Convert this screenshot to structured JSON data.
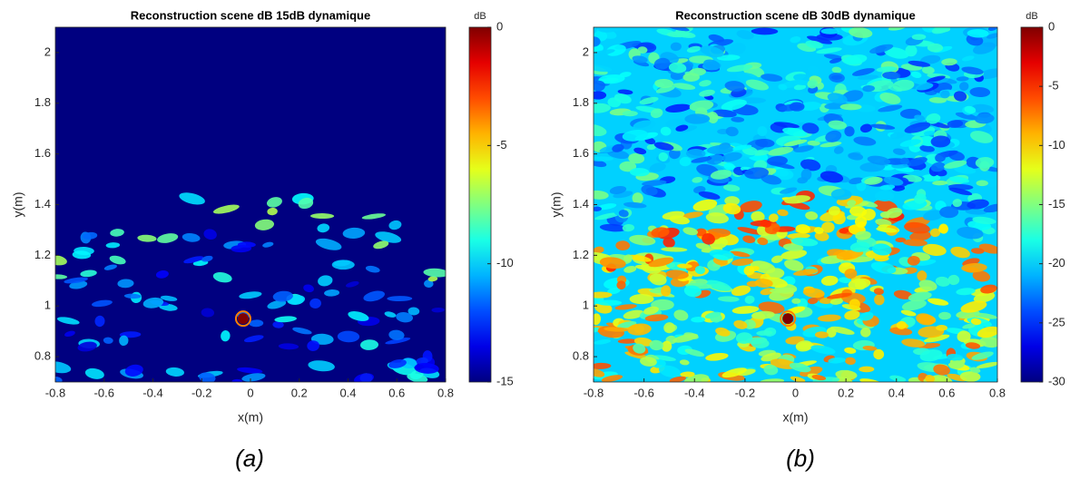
{
  "chart_data": [
    {
      "type": "heatmap",
      "title": "Reconstruction scene dB 15dB dynamique",
      "xlabel": "x(m)",
      "ylabel": "y(m)",
      "xlim": [
        -0.8,
        0.8
      ],
      "ylim": [
        0.7,
        2.1
      ],
      "xticks": [
        -0.8,
        -0.6,
        -0.4,
        -0.2,
        0,
        0.2,
        0.4,
        0.6,
        0.8
      ],
      "yticks": [
        0.8,
        1,
        1.2,
        1.4,
        1.6,
        1.8,
        2
      ],
      "colorbar_label": "dB",
      "clim": [
        -15,
        0
      ],
      "cticks": [
        0,
        -5,
        -10,
        -15
      ],
      "colormap": "jet",
      "caption": "(a)"
    },
    {
      "type": "heatmap",
      "title": "Reconstruction scene dB 30dB dynamique",
      "xlabel": "x(m)",
      "ylabel": "y(m)",
      "xlim": [
        -0.8,
        0.8
      ],
      "ylim": [
        0.7,
        2.1
      ],
      "xticks": [
        -0.8,
        -0.6,
        -0.4,
        -0.2,
        0,
        0.2,
        0.4,
        0.6,
        0.8
      ],
      "yticks": [
        0.8,
        1,
        1.2,
        1.4,
        1.6,
        1.8,
        2
      ],
      "colorbar_label": "dB",
      "clim": [
        -30,
        0
      ],
      "cticks": [
        0,
        -5,
        -10,
        -15,
        -20,
        -25,
        -30
      ],
      "colormap": "jet",
      "caption": "(b)"
    }
  ]
}
